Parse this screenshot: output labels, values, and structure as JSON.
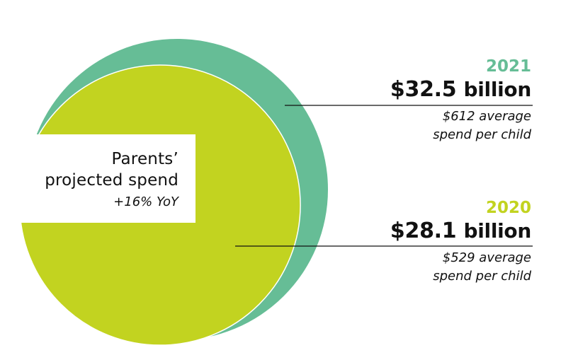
{
  "chart_data": {
    "type": "area-circles",
    "title_lines": [
      "Parents’",
      "projected spend"
    ],
    "growth_note": "+16% YoY",
    "series": [
      {
        "year": "2021",
        "value": 32.5,
        "amount_label": "$32.5",
        "unit_label": "billion",
        "note_lines": [
          "$612 average",
          "spend per child"
        ],
        "color": "#66BD96"
      },
      {
        "year": "2020",
        "value": 28.1,
        "amount_label": "$28.1",
        "unit_label": "billion",
        "note_lines": [
          "$529 average",
          "spend per child"
        ],
        "color": "#C2D320"
      }
    ],
    "year_colors": {
      "2021": "#66BD96",
      "2020": "#C2D320"
    }
  }
}
